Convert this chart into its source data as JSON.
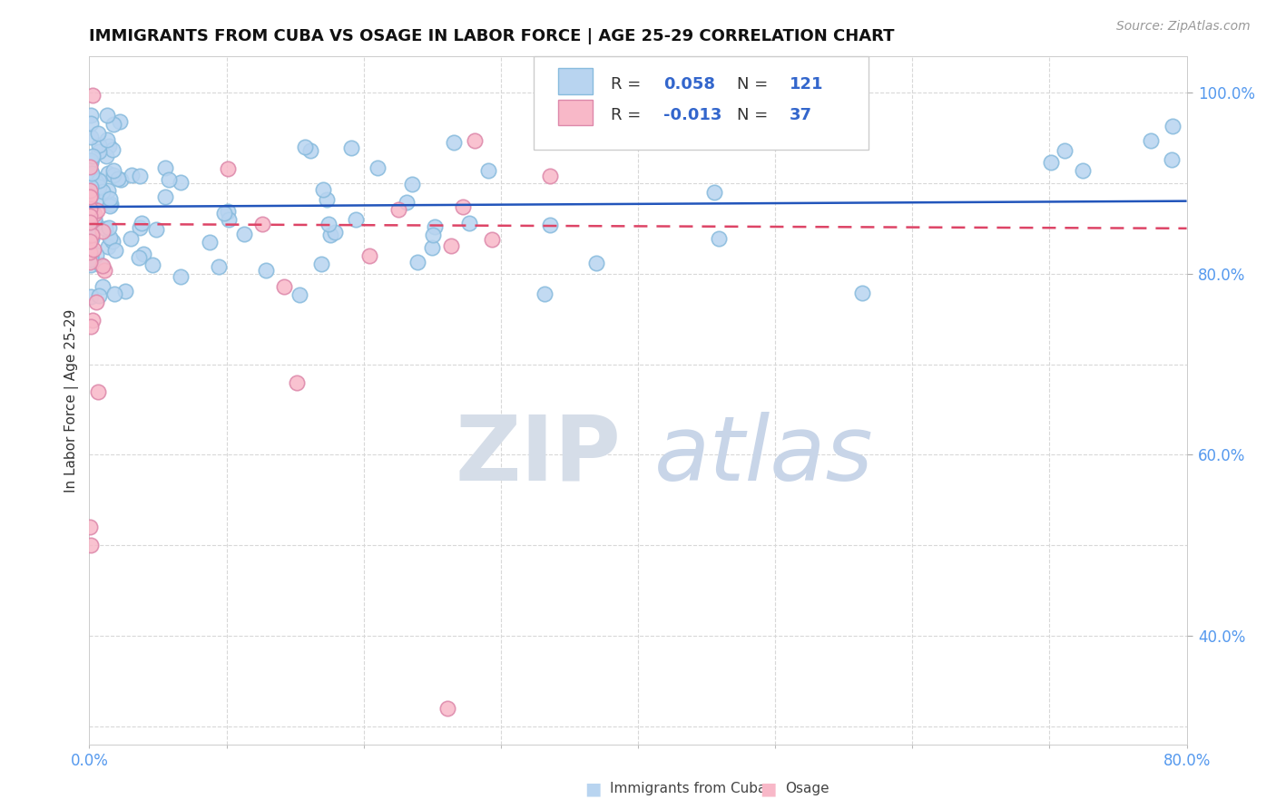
{
  "title": "IMMIGRANTS FROM CUBA VS OSAGE IN LABOR FORCE | AGE 25-29 CORRELATION CHART",
  "source_text": "Source: ZipAtlas.com",
  "ylabel": "In Labor Force | Age 25-29",
  "xlim": [
    0.0,
    0.8
  ],
  "ylim": [
    0.28,
    1.04
  ],
  "x_tick_positions": [
    0.0,
    0.1,
    0.2,
    0.3,
    0.4,
    0.5,
    0.6,
    0.7,
    0.8
  ],
  "x_tick_labels": [
    "0.0%",
    "",
    "",
    "",
    "",
    "",
    "",
    "",
    "80.0%"
  ],
  "y_tick_positions": [
    0.4,
    0.6,
    0.8,
    1.0
  ],
  "y_tick_labels": [
    "40.0%",
    "60.0%",
    "80.0%",
    "100.0%"
  ],
  "legend_r_cuba": "0.058",
  "legend_n_cuba": "121",
  "legend_r_osage": "-0.013",
  "legend_n_osage": "37",
  "cuba_fill_color": "#b8d4f0",
  "cuba_edge_color": "#7aaced6",
  "osage_fill_color": "#f8b8c8",
  "osage_edge_color": "#e888a8",
  "trendline_cuba_color": "#2255bb",
  "trendline_osage_color": "#dd4466",
  "grid_color": "#d8d8d8",
  "background_color": "#ffffff",
  "title_color": "#111111",
  "tick_color": "#5599ee",
  "source_color": "#999999",
  "legend_text_color": "#333333",
  "legend_value_color": "#3366cc",
  "legend_box_color": "#cccccc",
  "watermark_zip_color": "#d0d8e8",
  "watermark_atlas_color": "#c0cce0",
  "ylabel_color": "#333333"
}
